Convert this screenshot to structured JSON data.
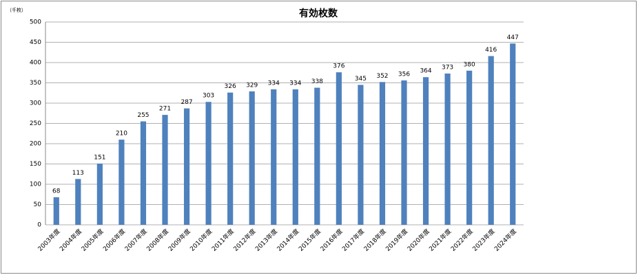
{
  "chart_data": {
    "type": "bar",
    "title": "有効枚数",
    "unit_label": "（千枚）",
    "categories": [
      "2003年度",
      "2004年度",
      "2005年度",
      "2006年度",
      "2007年度",
      "2008年度",
      "2009年度",
      "2010年度",
      "2011年度",
      "2012年度",
      "2013年度",
      "2014年度",
      "2015年度",
      "2016年度",
      "2017年度",
      "2018年度",
      "2019年度",
      "2020年度",
      "2021年度",
      "2022年度",
      "2023年度",
      "2024年度"
    ],
    "values": [
      68,
      113,
      151,
      210,
      255,
      271,
      287,
      303,
      326,
      329,
      334,
      334,
      338,
      376,
      345,
      352,
      356,
      364,
      373,
      380,
      416,
      447
    ],
    "color": "#4f81bd",
    "ylim": [
      0,
      500
    ],
    "yticks": [
      0,
      50,
      100,
      150,
      200,
      250,
      300,
      350,
      400,
      450,
      500
    ],
    "grid": true
  }
}
